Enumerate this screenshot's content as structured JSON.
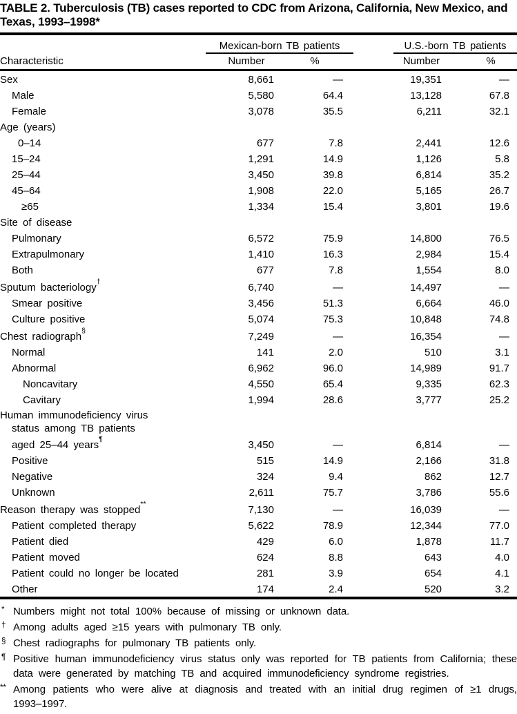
{
  "title": "TABLE 2. Tuberculosis (TB) cases reported to CDC from Arizona, California, New Mexico, and Texas, 1993–1998*",
  "header": {
    "characteristic": "Characteristic",
    "group_mexican": "Mexican-born TB patients",
    "group_us": "U.S.-born TB patients",
    "number": "Number",
    "percent": "%"
  },
  "rows": [
    {
      "label": "Sex",
      "indent": 0,
      "mex_number": "8,661",
      "mex_percent": "—",
      "us_number": "19,351",
      "us_percent": "—"
    },
    {
      "label": "Male",
      "indent": 17,
      "mex_number": "5,580",
      "mex_percent": "64.4",
      "us_number": "13,128",
      "us_percent": "67.8"
    },
    {
      "label": "Female",
      "indent": 17,
      "mex_number": "3,078",
      "mex_percent": "35.5",
      "us_number": "6,211",
      "us_percent": "32.1"
    },
    {
      "label": "Age (years)",
      "indent": 0,
      "mex_number": "",
      "mex_percent": "",
      "us_number": "",
      "us_percent": ""
    },
    {
      "label": "0–14",
      "indent": 26,
      "mex_number": "677",
      "mex_percent": "7.8",
      "us_number": "2,441",
      "us_percent": "12.6"
    },
    {
      "label": "15–24",
      "indent": 17,
      "mex_number": "1,291",
      "mex_percent": "14.9",
      "us_number": "1,126",
      "us_percent": "5.8"
    },
    {
      "label": "25–44",
      "indent": 17,
      "mex_number": "3,450",
      "mex_percent": "39.8",
      "us_number": "6,814",
      "us_percent": "35.2"
    },
    {
      "label": "45–64",
      "indent": 17,
      "mex_number": "1,908",
      "mex_percent": "22.0",
      "us_number": "5,165",
      "us_percent": "26.7"
    },
    {
      "label": "≥65",
      "indent": 31,
      "mex_number": "1,334",
      "mex_percent": "15.4",
      "us_number": "3,801",
      "us_percent": "19.6"
    },
    {
      "label": "Site of disease",
      "indent": 0,
      "mex_number": "",
      "mex_percent": "",
      "us_number": "",
      "us_percent": ""
    },
    {
      "label": "Pulmonary",
      "indent": 17,
      "mex_number": "6,572",
      "mex_percent": "75.9",
      "us_number": "14,800",
      "us_percent": "76.5"
    },
    {
      "label": "Extrapulmonary",
      "indent": 17,
      "mex_number": "1,410",
      "mex_percent": "16.3",
      "us_number": "2,984",
      "us_percent": "15.4"
    },
    {
      "label": "Both",
      "indent": 17,
      "mex_number": "677",
      "mex_percent": "7.8",
      "us_number": "1,554",
      "us_percent": "8.0"
    },
    {
      "label": "Sputum bacteriology",
      "sup": "†",
      "indent": 0,
      "mex_number": "6,740",
      "mex_percent": "—",
      "us_number": "14,497",
      "us_percent": "—"
    },
    {
      "label": "Smear positive",
      "indent": 17,
      "mex_number": "3,456",
      "mex_percent": "51.3",
      "us_number": "6,664",
      "us_percent": "46.0"
    },
    {
      "label": "Culture positive",
      "indent": 17,
      "mex_number": "5,074",
      "mex_percent": "75.3",
      "us_number": "10,848",
      "us_percent": "74.8"
    },
    {
      "label": "Chest radiograph",
      "sup": "§",
      "indent": 0,
      "mex_number": "7,249",
      "mex_percent": "—",
      "us_number": "16,354",
      "us_percent": "—"
    },
    {
      "label": "Normal",
      "indent": 17,
      "mex_number": "141",
      "mex_percent": "2.0",
      "us_number": "510",
      "us_percent": "3.1"
    },
    {
      "label": "Abnormal",
      "indent": 17,
      "mex_number": "6,962",
      "mex_percent": "96.0",
      "us_number": "14,989",
      "us_percent": "91.7"
    },
    {
      "label": "Noncavitary",
      "indent": 33,
      "mex_number": "4,550",
      "mex_percent": "65.4",
      "us_number": "9,335",
      "us_percent": "62.3"
    },
    {
      "label": "Cavitary",
      "indent": 33,
      "mex_number": "1,994",
      "mex_percent": "28.6",
      "us_number": "3,777",
      "us_percent": "25.2"
    },
    {
      "label_lines": [
        "Human immunodeficiency virus",
        "status among TB patients",
        "aged 25–44 years"
      ],
      "sup": "¶",
      "indent": 0,
      "mex_number": "3,450",
      "mex_percent": "—",
      "us_number": "6,814",
      "us_percent": "—"
    },
    {
      "label": "Positive",
      "indent": 17,
      "mex_number": "515",
      "mex_percent": "14.9",
      "us_number": "2,166",
      "us_percent": "31.8"
    },
    {
      "label": "Negative",
      "indent": 17,
      "mex_number": "324",
      "mex_percent": "9.4",
      "us_number": "862",
      "us_percent": "12.7"
    },
    {
      "label": "Unknown",
      "indent": 17,
      "mex_number": "2,611",
      "mex_percent": "75.7",
      "us_number": "3,786",
      "us_percent": "55.6"
    },
    {
      "label": "Reason therapy was stopped",
      "sup": "**",
      "indent": 0,
      "mex_number": "7,130",
      "mex_percent": "—",
      "us_number": "16,039",
      "us_percent": "—"
    },
    {
      "label": "Patient completed therapy",
      "indent": 17,
      "mex_number": "5,622",
      "mex_percent": "78.9",
      "us_number": "12,344",
      "us_percent": "77.0"
    },
    {
      "label": "Patient died",
      "indent": 17,
      "mex_number": "429",
      "mex_percent": "6.0",
      "us_number": "1,878",
      "us_percent": "11.7"
    },
    {
      "label": "Patient moved",
      "indent": 17,
      "mex_number": "624",
      "mex_percent": "8.8",
      "us_number": "643",
      "us_percent": "4.0"
    },
    {
      "label": "Patient could no longer be located",
      "indent": 17,
      "mex_number": "281",
      "mex_percent": "3.9",
      "us_number": "654",
      "us_percent": "4.1"
    },
    {
      "label": "Other",
      "indent": 17,
      "mex_number": "174",
      "mex_percent": "2.4",
      "us_number": "520",
      "us_percent": "3.2"
    }
  ],
  "footnotes": [
    {
      "marker": "*",
      "text": "Numbers might not total 100% because of missing or unknown data."
    },
    {
      "marker": "†",
      "text": "Among adults aged ≥15 years with pulmonary TB only."
    },
    {
      "marker": "§",
      "text": "Chest radiographs for pulmonary TB patients only."
    },
    {
      "marker": "¶",
      "text": "Positive human immunodeficiency virus status only was reported for TB patients from California; these data were generated by matching TB and acquired immunodeficiency syndrome registries."
    },
    {
      "marker": "**",
      "text": "Among patients who were alive at diagnosis and treated with an initial drug regimen of ≥1 drugs, 1993–1997."
    }
  ]
}
